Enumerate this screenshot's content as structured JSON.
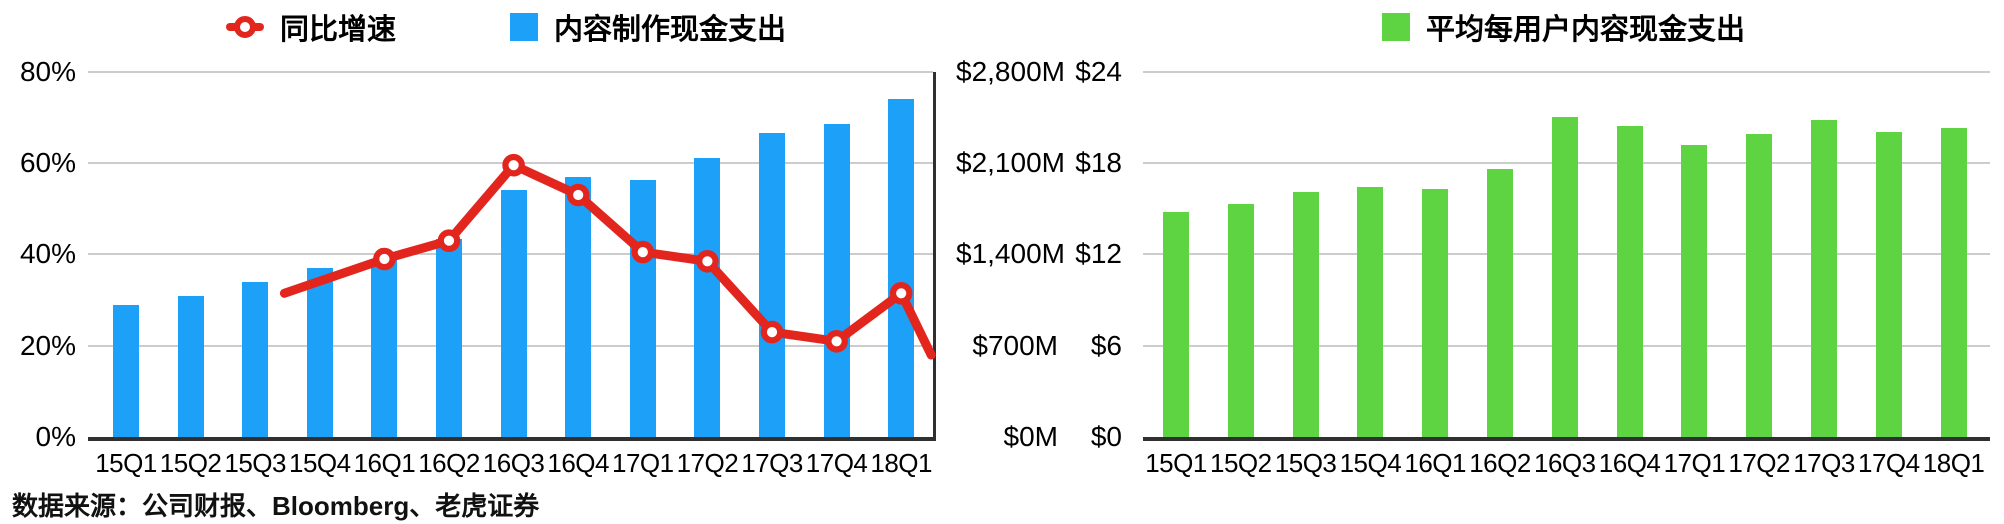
{
  "source_note": "数据来源：公司财报、Bloomberg、老虎证券",
  "style": {
    "grid_color": "#cccccc",
    "axis_color": "#303030",
    "text_color": "#000000",
    "background": "#ffffff"
  },
  "chart_data": [
    {
      "type": "combo-bar-line",
      "title": "",
      "legend_position": "top",
      "grid": true,
      "categories": [
        "15Q1",
        "15Q2",
        "15Q3",
        "15Q4",
        "16Q1",
        "16Q2",
        "16Q3",
        "16Q4",
        "17Q1",
        "17Q2",
        "17Q3",
        "17Q4",
        "18Q1"
      ],
      "left_axis": {
        "label": "同比增速",
        "max": 80,
        "ticks": [
          "80%",
          "60%",
          "40%",
          "20%",
          "0%"
        ]
      },
      "right_axis": {
        "label": "内容制作现金支出",
        "max": 2800,
        "ticks": [
          "$2,800M",
          "$2,100M",
          "$1,400M",
          "$700M",
          "$0M"
        ]
      },
      "series": [
        {
          "name": "内容制作现金支出",
          "type": "bar",
          "axis": "right",
          "unit": "$M",
          "color": "#1CA0F8",
          "values": [
            1010,
            1080,
            1190,
            1295,
            1360,
            1520,
            1890,
            1990,
            1970,
            2135,
            2330,
            2400,
            2590
          ]
        },
        {
          "name": "同比增速",
          "type": "line",
          "axis": "left",
          "unit": "%",
          "color": "#E3261D",
          "marker": "open-circle",
          "values": [
            null,
            null,
            null,
            null,
            39,
            43,
            59.5,
            53,
            40.5,
            38.5,
            23,
            21,
            31.5
          ],
          "lead_tail": {
            "dx": -100,
            "pct": 31.5
          },
          "trail_tail": {
            "dx": 30,
            "pct": 18
          }
        }
      ]
    },
    {
      "type": "bar",
      "title": "",
      "legend_position": "top",
      "grid": true,
      "categories": [
        "15Q1",
        "15Q2",
        "15Q3",
        "15Q4",
        "16Q1",
        "16Q2",
        "16Q3",
        "16Q4",
        "17Q1",
        "17Q2",
        "17Q3",
        "17Q4",
        "18Q1"
      ],
      "left_axis": {
        "label": "平均每用户内容现金支出",
        "max": 24,
        "ticks": [
          "$24",
          "$18",
          "$12",
          "$6",
          "$0"
        ]
      },
      "series": [
        {
          "name": "平均每用户内容现金支出",
          "type": "bar",
          "axis": "left",
          "unit": "$",
          "color": "#5FD443",
          "values": [
            14.8,
            15.3,
            16.1,
            16.4,
            16.3,
            17.6,
            21.0,
            20.4,
            19.2,
            19.9,
            20.8,
            20.0,
            20.3
          ]
        }
      ]
    }
  ]
}
